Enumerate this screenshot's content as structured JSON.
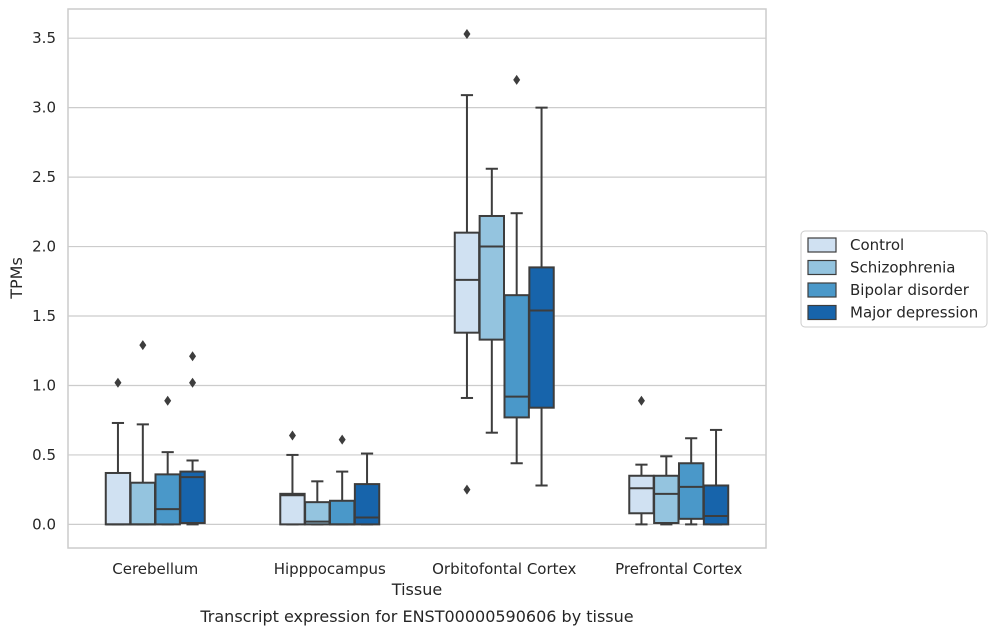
{
  "chart_data": {
    "type": "box",
    "title": "",
    "caption": "Transcript expression for ENST00000590606 by tissue",
    "xlabel": "Tissue",
    "ylabel": "TPMs",
    "ylim": [
      -0.17,
      3.71
    ],
    "yticks": [
      0.0,
      0.5,
      1.0,
      1.5,
      2.0,
      2.5,
      3.0,
      3.5
    ],
    "ytick_labels": [
      "0.0",
      "0.5",
      "1.0",
      "1.5",
      "2.0",
      "2.5",
      "3.0",
      "3.5"
    ],
    "categories": [
      "Cerebellum",
      "Hipppocampus",
      "Orbitofontal Cortex",
      "Prefrontal Cortex"
    ],
    "grid": "horizontal",
    "legend_position": "right",
    "series": [
      {
        "name": "Control",
        "color": "#d0e1f2",
        "boxes": [
          {
            "whislo": 0.0,
            "q1": 0.0,
            "med": 0.0,
            "q3": 0.37,
            "whishi": 0.73,
            "fliers": [
              1.02
            ]
          },
          {
            "whislo": 0.0,
            "q1": 0.0,
            "med": 0.21,
            "q3": 0.22,
            "whishi": 0.5,
            "fliers": [
              0.64
            ]
          },
          {
            "whislo": 0.91,
            "q1": 1.38,
            "med": 1.76,
            "q3": 2.1,
            "whishi": 3.09,
            "fliers": [
              3.53,
              0.25
            ]
          },
          {
            "whislo": 0.0,
            "q1": 0.08,
            "med": 0.26,
            "q3": 0.35,
            "whishi": 0.43,
            "fliers": [
              0.89
            ]
          }
        ]
      },
      {
        "name": "Schizophrenia",
        "color": "#94c4df",
        "boxes": [
          {
            "whislo": 0.0,
            "q1": 0.0,
            "med": 0.0,
            "q3": 0.3,
            "whishi": 0.72,
            "fliers": [
              1.29
            ]
          },
          {
            "whislo": 0.0,
            "q1": 0.0,
            "med": 0.02,
            "q3": 0.16,
            "whishi": 0.31,
            "fliers": []
          },
          {
            "whislo": 0.66,
            "q1": 1.33,
            "med": 2.0,
            "q3": 2.22,
            "whishi": 2.56,
            "fliers": []
          },
          {
            "whislo": 0.0,
            "q1": 0.01,
            "med": 0.22,
            "q3": 0.35,
            "whishi": 0.49,
            "fliers": []
          }
        ]
      },
      {
        "name": "Bipolar disorder",
        "color": "#4a98c9",
        "boxes": [
          {
            "whislo": 0.0,
            "q1": 0.0,
            "med": 0.11,
            "q3": 0.36,
            "whishi": 0.52,
            "fliers": [
              0.89
            ]
          },
          {
            "whislo": 0.0,
            "q1": 0.0,
            "med": 0.0,
            "q3": 0.17,
            "whishi": 0.38,
            "fliers": [
              0.61
            ]
          },
          {
            "whislo": 0.44,
            "q1": 0.77,
            "med": 0.92,
            "q3": 1.65,
            "whishi": 2.24,
            "fliers": [
              3.2
            ]
          },
          {
            "whislo": 0.0,
            "q1": 0.04,
            "med": 0.27,
            "q3": 0.44,
            "whishi": 0.62,
            "fliers": []
          }
        ]
      },
      {
        "name": "Major depression",
        "color": "#1764ab",
        "boxes": [
          {
            "whislo": 0.0,
            "q1": 0.01,
            "med": 0.34,
            "q3": 0.38,
            "whishi": 0.46,
            "fliers": [
              1.21,
              1.02
            ]
          },
          {
            "whislo": 0.0,
            "q1": 0.0,
            "med": 0.05,
            "q3": 0.29,
            "whishi": 0.51,
            "fliers": []
          },
          {
            "whislo": 0.28,
            "q1": 0.84,
            "med": 1.54,
            "q3": 1.85,
            "whishi": 3.0,
            "fliers": []
          },
          {
            "whislo": 0.0,
            "q1": 0.0,
            "med": 0.06,
            "q3": 0.28,
            "whishi": 0.68,
            "fliers": []
          }
        ]
      }
    ]
  }
}
